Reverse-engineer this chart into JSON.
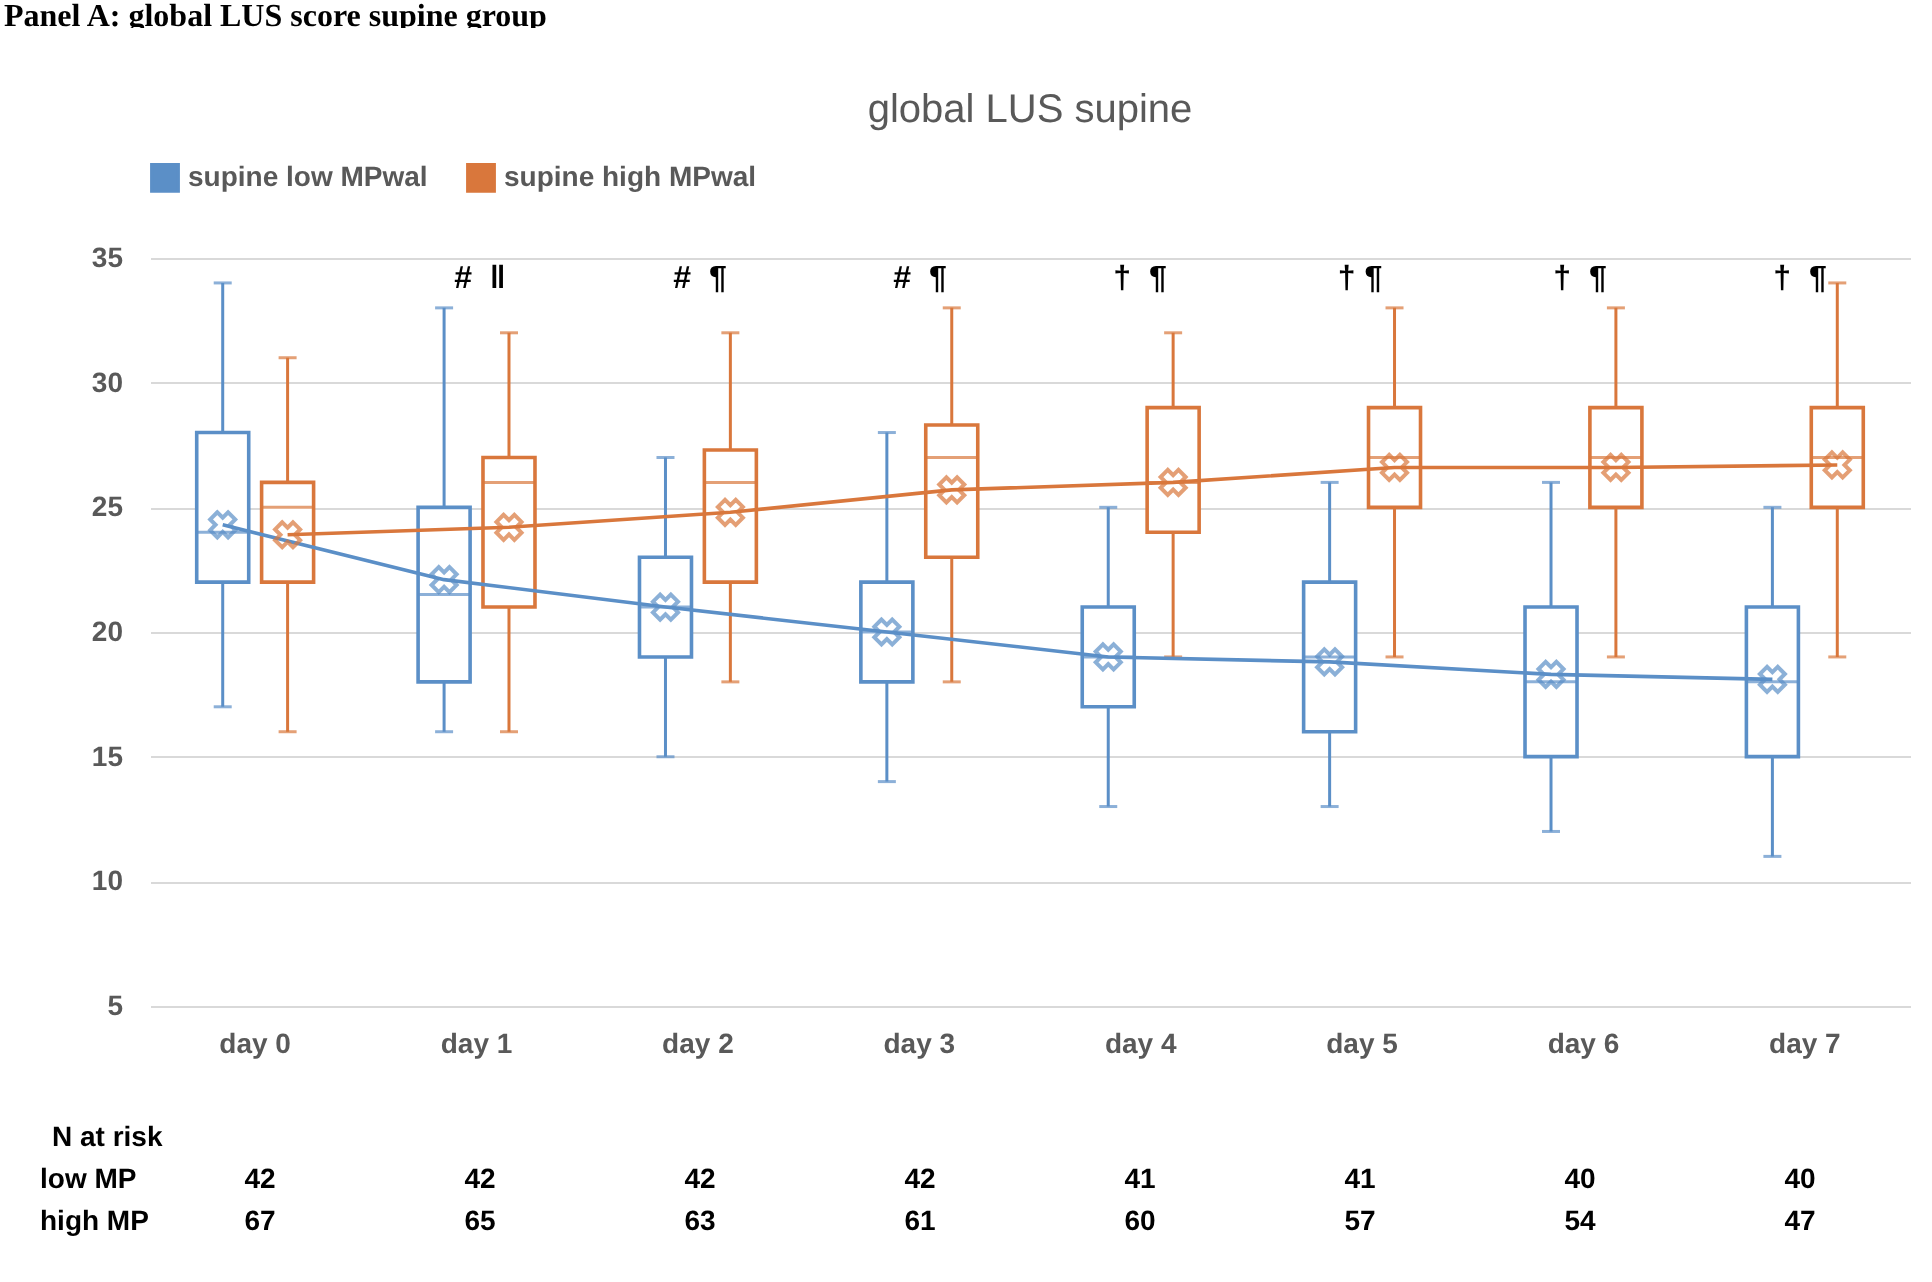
{
  "chart_data": {
    "type": "box",
    "title": "global LUS    supine",
    "subtitle": "Panel A:  global LUS score supine group",
    "categories": [
      "day 0",
      "day 1",
      "day 2",
      "day 3",
      "day 4",
      "day 5",
      "day 6",
      "day 7"
    ],
    "series": [
      {
        "name": "supine low MPwal",
        "color": "#5b8fc7",
        "boxes": [
          {
            "low": 17,
            "q1": 22,
            "median": 24,
            "q3": 28,
            "high": 34
          },
          {
            "low": 16,
            "q1": 18,
            "median": 21.5,
            "q3": 25,
            "high": 33
          },
          {
            "low": 15,
            "q1": 19,
            "median": 21,
            "q3": 23,
            "high": 27
          },
          {
            "low": 14,
            "q1": 18,
            "median": 20,
            "q3": 22,
            "high": 28
          },
          {
            "low": 13,
            "q1": 17,
            "median": 19,
            "q3": 21,
            "high": 25
          },
          {
            "low": 13,
            "q1": 16,
            "median": 19,
            "q3": 22,
            "high": 26
          },
          {
            "low": 12,
            "q1": 15,
            "median": 18,
            "q3": 21,
            "high": 26
          },
          {
            "low": 11,
            "q1": 15,
            "median": 18,
            "q3": 21,
            "high": 25
          }
        ]
      },
      {
        "name": "supine high MPwal",
        "color": "#d9773c",
        "boxes": [
          {
            "low": 16,
            "q1": 22,
            "median": 25,
            "q3": 26,
            "high": 31
          },
          {
            "low": 16,
            "q1": 21,
            "median": 26,
            "q3": 27,
            "high": 32
          },
          {
            "low": 18,
            "q1": 22,
            "median": 26,
            "q3": 27.3,
            "high": 32
          },
          {
            "low": 18,
            "q1": 23,
            "median": 27,
            "q3": 28.3,
            "high": 33
          },
          {
            "low": 19,
            "q1": 24,
            "median": 26,
            "q3": 29,
            "high": 32
          },
          {
            "low": 19,
            "q1": 25,
            "median": 27,
            "q3": 29,
            "high": 33
          },
          {
            "low": 19,
            "q1": 25,
            "median": 27,
            "q3": 29,
            "high": 33
          },
          {
            "low": 19,
            "q1": 25,
            "median": 27,
            "q3": 29,
            "high": 34
          }
        ]
      },
      {
        "type": "line",
        "color": "#5b8fc7",
        "values": [
          24.3,
          22.1,
          21,
          20,
          19,
          18.8,
          18.3,
          18.1
        ]
      },
      {
        "type": "line",
        "color": "#d9773c",
        "values": [
          23.9,
          24.2,
          24.8,
          25.7,
          26,
          26.6,
          26.6,
          26.7
        ]
      }
    ],
    "ylim": [
      5,
      35
    ],
    "yticks": [
      5,
      10,
      15,
      20,
      25,
      30,
      35
    ],
    "grid": "y",
    "legend": "top",
    "marker": "cross",
    "annotations": [
      "#  ‖      #  ¶      #  ¶      †  ¶      † ¶      †  ¶      †  ¶",
      "N at risk",
      "low MP      42      42      42      42      41      41      40      40",
      "high MP      67      65      63      61      60      57      54      47"
    ]
  }
}
